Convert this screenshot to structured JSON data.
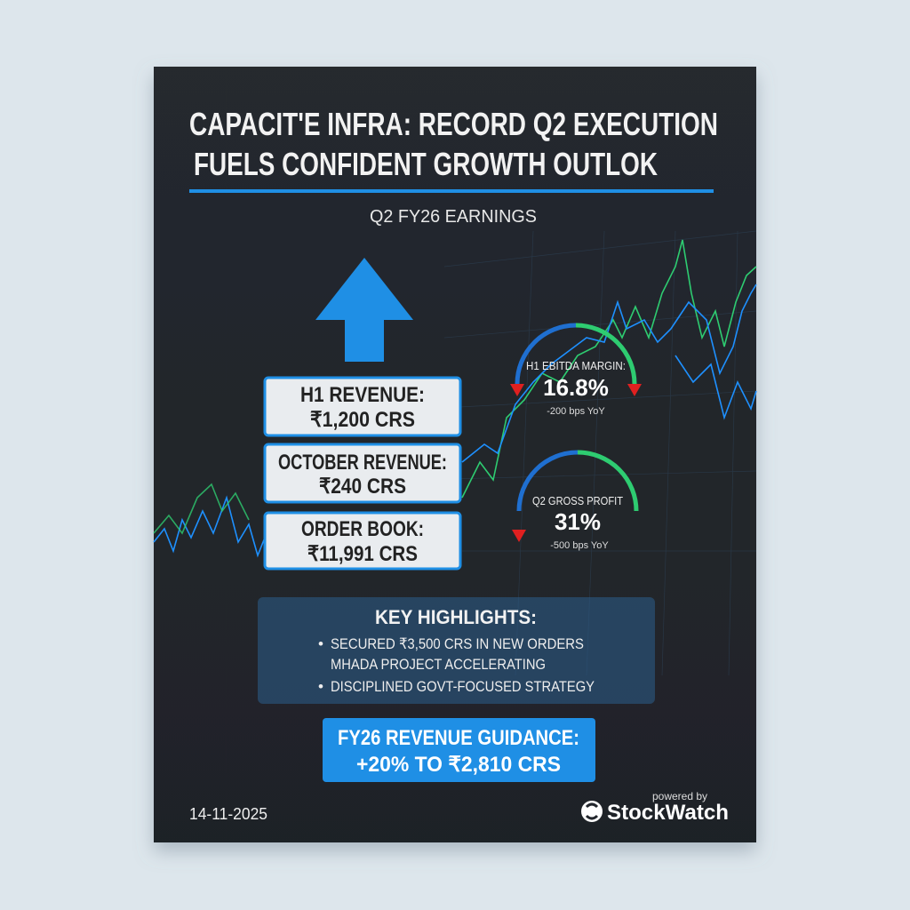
{
  "header": {
    "title_lines": [
      "CAPACIT'E INFRA: RECORD Q2 EXECUTION",
      "FUELS CONFIDENT GROWTH OUTLOK"
    ],
    "subtitle": "Q2 FY26 EARNINGS"
  },
  "metrics": [
    {
      "label": "H1 REVENUE:",
      "value": "₹1,200 CRS"
    },
    {
      "label": "OCTOBER REVENUE:",
      "value": "₹240 CRS"
    },
    {
      "label": "ORDER BOOK:",
      "value": "₹11,991 CRS"
    }
  ],
  "gauges": [
    {
      "label": "H1 EBITDA MARGIN:",
      "value": "16.8%",
      "change": "-200 bps YoY"
    },
    {
      "label": "Q2 GROSS PROFIT",
      "value": "31%",
      "change": "-500 bps YoY"
    }
  ],
  "highlights": {
    "title": "KEY HIGHLIGHTS:",
    "items": [
      "SECURED ₹3,500 CRS IN NEW ORDERS",
      "MHADA PROJECT ACCELERATING",
      "DISCIPLINED GOVT-FOCUSED STRATEGY"
    ]
  },
  "guidance": {
    "lines": [
      "FY26 REVENUE GUIDANCE:",
      "+20% TO ₹2,810 CRS"
    ]
  },
  "footer": {
    "date": "14-11-2025",
    "powered_by": "powered by",
    "brand": "StockWatch"
  }
}
